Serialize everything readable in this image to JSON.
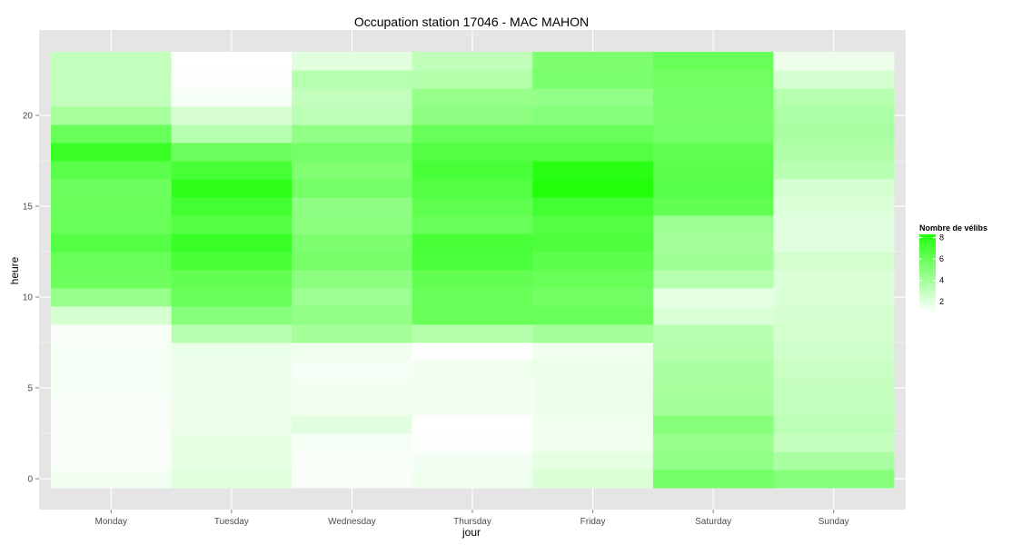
{
  "chart_data": {
    "type": "heatmap",
    "title": "Occupation station 17046 - MAC MAHON",
    "xlabel": "jour",
    "ylabel": "heure",
    "x": [
      "Monday",
      "Tuesday",
      "Wednesday",
      "Thursday",
      "Friday",
      "Saturday",
      "Sunday"
    ],
    "y": [
      0,
      1,
      2,
      3,
      4,
      5,
      6,
      7,
      8,
      9,
      10,
      11,
      12,
      13,
      14,
      15,
      16,
      17,
      18,
      19,
      20,
      21,
      22,
      23
    ],
    "ylim": [
      -0.5,
      23.5
    ],
    "yticks": [
      0,
      5,
      10,
      15,
      20
    ],
    "grid": true,
    "legend": {
      "title": "Nombre de vélibs",
      "ticks": [
        2,
        4,
        6,
        8
      ],
      "range": [
        1,
        8.3
      ],
      "low_color": "#ffffff",
      "high_color": "#22ff0c",
      "placement": "right"
    },
    "colors": {
      "panel_background": "#e5e5e5",
      "gridline": "#ffffff"
    },
    "values": [
      [
        1.4,
        2.1,
        1.2,
        1.5,
        2.2,
        5.6,
        5.0
      ],
      [
        1.2,
        1.9,
        1.2,
        1.4,
        1.9,
        4.6,
        3.8
      ],
      [
        1.2,
        1.8,
        1.3,
        1.1,
        1.5,
        4.4,
        2.9
      ],
      [
        1.2,
        1.6,
        2.0,
        1.0,
        1.5,
        5.0,
        3.2
      ],
      [
        1.2,
        1.6,
        1.5,
        1.4,
        1.6,
        4.0,
        3.0
      ],
      [
        1.3,
        1.6,
        1.4,
        1.4,
        1.6,
        3.9,
        2.9
      ],
      [
        1.3,
        1.6,
        1.3,
        1.5,
        1.6,
        3.8,
        2.8
      ],
      [
        1.3,
        1.7,
        1.5,
        1.1,
        1.5,
        3.5,
        2.6
      ],
      [
        1.2,
        3.3,
        4.0,
        3.5,
        4.0,
        3.3,
        2.5
      ],
      [
        2.4,
        5.0,
        4.6,
        6.0,
        6.0,
        2.2,
        2.4
      ],
      [
        4.5,
        6.0,
        4.3,
        6.0,
        5.7,
        1.8,
        2.2
      ],
      [
        5.8,
        6.2,
        4.8,
        6.2,
        6.0,
        3.4,
        2.2
      ],
      [
        6.0,
        7.0,
        5.5,
        6.9,
        6.4,
        4.2,
        2.5
      ],
      [
        6.6,
        7.5,
        5.3,
        7.0,
        6.8,
        4.0,
        2.0
      ],
      [
        6.0,
        6.6,
        4.8,
        6.0,
        6.7,
        4.3,
        2.0
      ],
      [
        5.9,
        7.2,
        4.7,
        6.3,
        7.2,
        6.2,
        2.2
      ],
      [
        5.8,
        7.9,
        5.6,
        6.7,
        8.3,
        6.5,
        2.4
      ],
      [
        6.4,
        7.1,
        5.2,
        7.0,
        8.1,
        6.4,
        3.3
      ],
      [
        7.5,
        5.8,
        5.6,
        6.7,
        6.7,
        6.2,
        3.6
      ],
      [
        6.0,
        3.4,
        4.6,
        6.0,
        6.0,
        5.6,
        3.8
      ],
      [
        3.9,
        2.3,
        3.2,
        4.7,
        5.0,
        5.5,
        3.7
      ],
      [
        3.0,
        1.3,
        3.0,
        4.5,
        4.6,
        5.6,
        3.4
      ],
      [
        3.0,
        1.1,
        3.4,
        3.5,
        5.4,
        5.7,
        2.4
      ],
      [
        3.0,
        1.0,
        2.0,
        3.1,
        5.3,
        6.0,
        1.6
      ]
    ]
  }
}
